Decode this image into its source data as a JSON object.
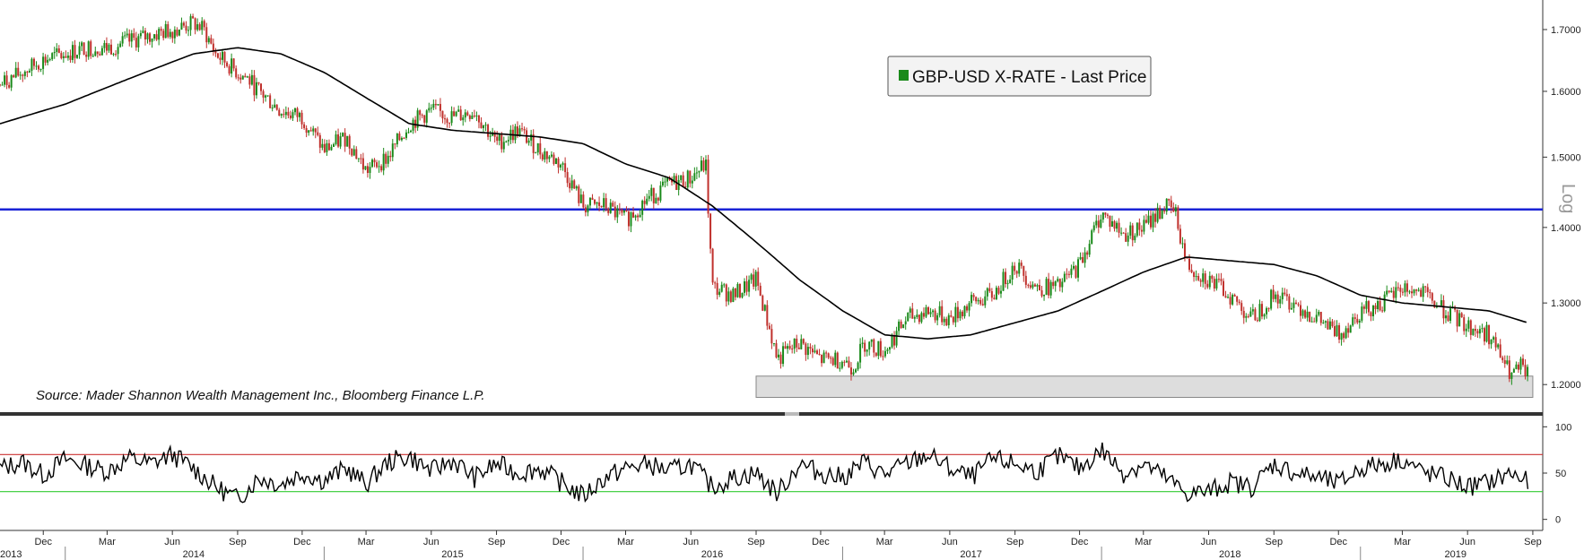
{
  "chart_data": [
    {
      "type": "line",
      "panel": "price",
      "title": "",
      "xlabel": "",
      "ylabel": "",
      "scale_label": "Log",
      "y_scale": "log",
      "ylim": [
        1.17,
        1.75
      ],
      "y_ticks": [
        "1.2000",
        "1.3000",
        "1.4000",
        "1.5000",
        "1.6000",
        "1.7000"
      ],
      "legend": {
        "position": "top-center",
        "entries": [
          {
            "label": "GBP-USD X-RATE - Last Price",
            "color": "#1a8a1a"
          }
        ]
      },
      "source": "Source: Mader Shannon Wealth Management Inc., Bloomberg Finance L.P.",
      "grid": false,
      "colors": {
        "up_candle": "#1a8a1a",
        "down_candle": "#c0302c",
        "moving_average": "#000000",
        "horizontal_line": "#1a23d6",
        "support_zone": "#dddddd"
      },
      "horizontal_line": {
        "value": 1.425
      },
      "support_zone": {
        "x_start": "2016-09-01",
        "x_end": "2019-09-01",
        "y_low": 1.185,
        "y_high": 1.21
      },
      "series": [
        {
          "kind": "price",
          "x": [
            "2013-10-01",
            "2013-11-01",
            "2013-12-01",
            "2014-01-01",
            "2014-02-01",
            "2014-03-01",
            "2014-04-01",
            "2014-05-01",
            "2014-06-01",
            "2014-07-01",
            "2014-07-15",
            "2014-08-01",
            "2014-09-01",
            "2014-09-15",
            "2014-10-01",
            "2014-11-01",
            "2014-12-01",
            "2015-01-01",
            "2015-02-01",
            "2015-03-01",
            "2015-04-01",
            "2015-05-01",
            "2015-06-01",
            "2015-07-01",
            "2015-08-01",
            "2015-09-01",
            "2015-10-01",
            "2015-11-01",
            "2015-12-01",
            "2016-01-01",
            "2016-02-01",
            "2016-03-01",
            "2016-04-01",
            "2016-05-01",
            "2016-06-01",
            "2016-06-22",
            "2016-07-01",
            "2016-08-01",
            "2016-09-01",
            "2016-10-01",
            "2016-10-15",
            "2016-11-01",
            "2016-12-01",
            "2017-01-01",
            "2017-01-15",
            "2017-02-01",
            "2017-03-01",
            "2017-04-01",
            "2017-05-01",
            "2017-06-01",
            "2017-07-01",
            "2017-08-01",
            "2017-09-01",
            "2017-10-01",
            "2017-11-01",
            "2017-12-01",
            "2018-01-01",
            "2018-02-01",
            "2018-03-01",
            "2018-04-01",
            "2018-04-15",
            "2018-05-01",
            "2018-06-01",
            "2018-07-01",
            "2018-08-01",
            "2018-09-01",
            "2018-10-01",
            "2018-11-01",
            "2018-12-01",
            "2019-01-01",
            "2019-02-01",
            "2019-03-01",
            "2019-04-01",
            "2019-05-01",
            "2019-06-01",
            "2019-07-01",
            "2019-07-20",
            "2019-08-01",
            "2019-08-15",
            "2019-08-25"
          ],
          "values": [
            1.61,
            1.63,
            1.65,
            1.66,
            1.67,
            1.67,
            1.68,
            1.69,
            1.7,
            1.71,
            1.7,
            1.66,
            1.63,
            1.62,
            1.6,
            1.57,
            1.56,
            1.51,
            1.53,
            1.48,
            1.5,
            1.55,
            1.57,
            1.56,
            1.57,
            1.52,
            1.54,
            1.51,
            1.49,
            1.43,
            1.43,
            1.41,
            1.44,
            1.46,
            1.47,
            1.49,
            1.32,
            1.31,
            1.33,
            1.23,
            1.24,
            1.25,
            1.23,
            1.23,
            1.22,
            1.25,
            1.24,
            1.28,
            1.29,
            1.28,
            1.3,
            1.31,
            1.35,
            1.32,
            1.32,
            1.35,
            1.42,
            1.39,
            1.4,
            1.43,
            1.42,
            1.35,
            1.33,
            1.31,
            1.28,
            1.31,
            1.3,
            1.28,
            1.26,
            1.29,
            1.3,
            1.32,
            1.31,
            1.29,
            1.27,
            1.26,
            1.23,
            1.21,
            1.22,
            1.21
          ]
        },
        {
          "kind": "moving-average",
          "x": [
            "2013-10-01",
            "2014-01-01",
            "2014-04-01",
            "2014-07-01",
            "2014-09-01",
            "2014-11-01",
            "2015-01-01",
            "2015-03-01",
            "2015-05-01",
            "2015-07-01",
            "2015-09-01",
            "2015-11-01",
            "2016-01-01",
            "2016-03-01",
            "2016-05-01",
            "2016-07-01",
            "2016-09-01",
            "2016-11-01",
            "2017-01-01",
            "2017-03-01",
            "2017-05-01",
            "2017-07-01",
            "2017-09-01",
            "2017-11-01",
            "2018-01-01",
            "2018-03-01",
            "2018-05-01",
            "2018-07-01",
            "2018-09-01",
            "2018-11-01",
            "2019-01-01",
            "2019-03-01",
            "2019-05-01",
            "2019-07-01",
            "2019-08-25"
          ],
          "values": [
            1.55,
            1.58,
            1.62,
            1.66,
            1.67,
            1.66,
            1.63,
            1.59,
            1.55,
            1.54,
            1.535,
            1.53,
            1.52,
            1.49,
            1.47,
            1.43,
            1.38,
            1.33,
            1.29,
            1.26,
            1.255,
            1.26,
            1.275,
            1.29,
            1.315,
            1.34,
            1.36,
            1.355,
            1.35,
            1.335,
            1.31,
            1.3,
            1.295,
            1.29,
            1.275
          ]
        }
      ]
    },
    {
      "type": "line",
      "panel": "oscillator",
      "title": "",
      "xlabel": "",
      "ylabel": "",
      "ylim": [
        -10,
        110
      ],
      "y_ticks": [
        "0",
        "50",
        "100"
      ],
      "grid": false,
      "colors": {
        "line": "#000000",
        "upper": "#cc3333",
        "lower": "#33cc33"
      },
      "reference_lines": [
        {
          "name": "upper",
          "value": 70
        },
        {
          "name": "lower",
          "value": 30
        }
      ],
      "series": [
        {
          "x": [
            "2013-10-01",
            "2013-11-01",
            "2013-12-01",
            "2014-01-01",
            "2014-02-01",
            "2014-03-01",
            "2014-04-01",
            "2014-05-01",
            "2014-06-01",
            "2014-07-01",
            "2014-08-01",
            "2014-09-01",
            "2014-10-01",
            "2014-11-01",
            "2014-12-01",
            "2015-01-01",
            "2015-02-01",
            "2015-03-01",
            "2015-04-01",
            "2015-05-01",
            "2015-06-01",
            "2015-07-01",
            "2015-08-01",
            "2015-09-01",
            "2015-10-01",
            "2015-11-01",
            "2015-12-01",
            "2016-01-01",
            "2016-02-01",
            "2016-03-01",
            "2016-04-01",
            "2016-05-01",
            "2016-06-01",
            "2016-07-01",
            "2016-08-01",
            "2016-09-01",
            "2016-10-01",
            "2016-11-01",
            "2016-12-01",
            "2017-01-01",
            "2017-02-01",
            "2017-03-01",
            "2017-04-01",
            "2017-05-01",
            "2017-06-01",
            "2017-07-01",
            "2017-08-01",
            "2017-09-01",
            "2017-10-01",
            "2017-11-01",
            "2017-12-01",
            "2018-01-01",
            "2018-02-01",
            "2018-03-01",
            "2018-04-01",
            "2018-05-01",
            "2018-06-01",
            "2018-07-01",
            "2018-08-01",
            "2018-09-01",
            "2018-10-01",
            "2018-11-01",
            "2018-12-01",
            "2019-01-01",
            "2019-02-01",
            "2019-03-01",
            "2019-04-01",
            "2019-05-01",
            "2019-06-01",
            "2019-07-01",
            "2019-08-01",
            "2019-08-25"
          ],
          "values": [
            55,
            62,
            48,
            65,
            58,
            52,
            66,
            60,
            70,
            55,
            35,
            22,
            45,
            38,
            50,
            42,
            55,
            38,
            62,
            68,
            52,
            64,
            45,
            60,
            50,
            55,
            40,
            25,
            45,
            55,
            60,
            52,
            60,
            35,
            45,
            50,
            28,
            60,
            50,
            45,
            62,
            48,
            60,
            70,
            55,
            45,
            65,
            60,
            52,
            68,
            55,
            75,
            50,
            60,
            45,
            28,
            30,
            40,
            35,
            60,
            50,
            45,
            38,
            55,
            60,
            65,
            50,
            45,
            35,
            40,
            50,
            40
          ]
        }
      ]
    }
  ],
  "x_axis": {
    "months": [
      "Dec",
      "Mar",
      "Jun",
      "Sep",
      "Dec",
      "Mar",
      "Jun",
      "Sep",
      "Dec",
      "Mar",
      "Jun",
      "Sep",
      "Dec",
      "Mar",
      "Jun",
      "Sep",
      "Dec",
      "Mar",
      "Jun",
      "Sep",
      "Dec",
      "Mar",
      "Jun",
      "Sep"
    ],
    "month_dates": [
      "2013-12-01",
      "2014-03-01",
      "2014-06-01",
      "2014-09-01",
      "2014-12-01",
      "2015-03-01",
      "2015-06-01",
      "2015-09-01",
      "2015-12-01",
      "2016-03-01",
      "2016-06-01",
      "2016-09-01",
      "2016-12-01",
      "2017-03-01",
      "2017-06-01",
      "2017-09-01",
      "2017-12-01",
      "2018-03-01",
      "2018-06-01",
      "2018-09-01",
      "2018-12-01",
      "2019-03-01",
      "2019-06-01",
      "2019-09-01"
    ],
    "years": [
      "2013",
      "2014",
      "2015",
      "2016",
      "2017",
      "2018",
      "2019"
    ],
    "year_dates": [
      "2013-10-01",
      "2014-07-01",
      "2015-07-01",
      "2016-07-01",
      "2017-07-01",
      "2018-07-01",
      "2019-05-15"
    ],
    "range": [
      "2013-10-01",
      "2019-09-15"
    ]
  }
}
